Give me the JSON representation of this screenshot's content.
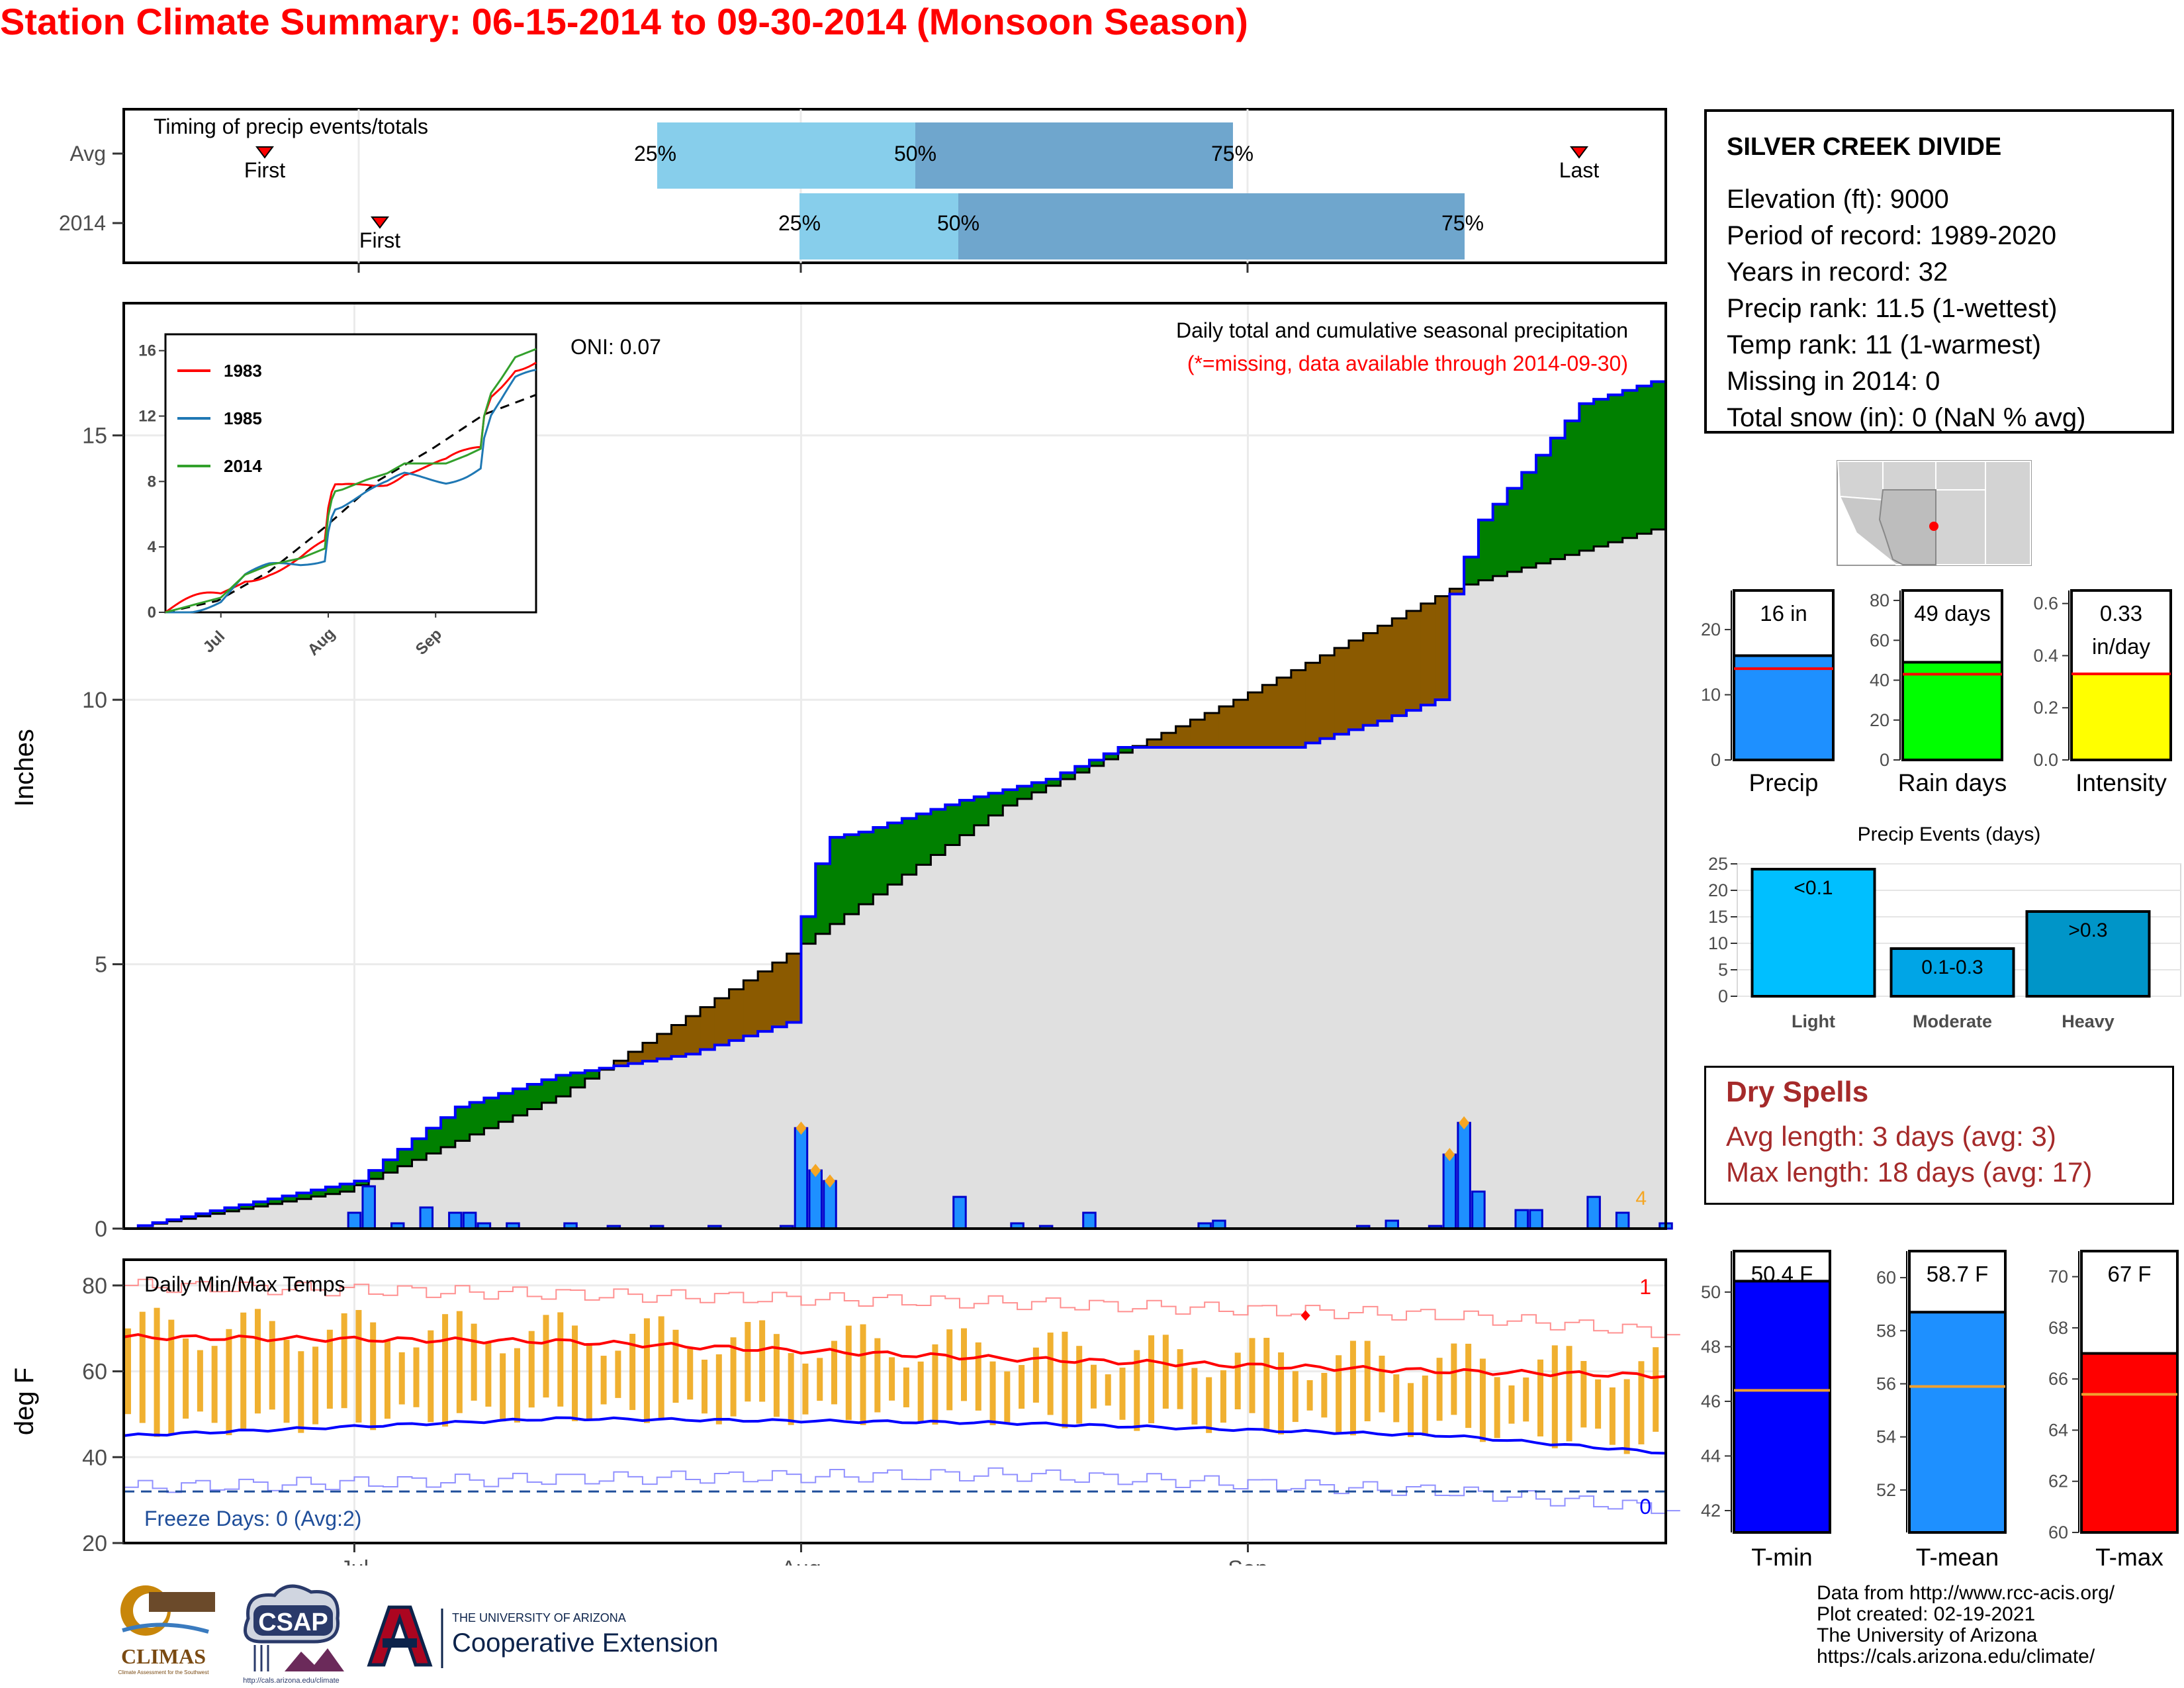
{
  "title": "Station Climate Summary: 06-15-2014 to 09-30-2014 (Monsoon Season)",
  "timing": {
    "label": "Timing of precip events/totals",
    "rows": [
      "Avg",
      "2014"
    ],
    "first_label": "First",
    "last_label": "Last",
    "pct_labels": [
      "25%",
      "50%",
      "75%"
    ],
    "colors": {
      "light": "#87ceeb",
      "dark": "#6fa6cd",
      "marker": "#ff0000"
    }
  },
  "precip": {
    "ylabel": "Inches",
    "yticks": [
      0,
      5,
      10,
      15
    ],
    "title_line1": "Daily total and cumulative seasonal precipitation",
    "title_line2": "(*=missing, data available through 2014-09-30)",
    "oni": "ONI: 0.07",
    "corner_count": "4",
    "colors": {
      "above": "#008000",
      "below": "#8b5a00",
      "normal_fill": "#e0e0e0",
      "cumulative_line": "#0000ff",
      "bar": "#1e90ff"
    }
  },
  "inset": {
    "yticks": [
      "0",
      "4",
      "8",
      "12",
      "16"
    ],
    "xticks": [
      "Jul",
      "Aug",
      "Sep"
    ],
    "legend": [
      {
        "name": "1983",
        "color": "#ff0000"
      },
      {
        "name": "1985",
        "color": "#1f78b4"
      },
      {
        "name": "2014",
        "color": "#33a02c"
      }
    ]
  },
  "temps": {
    "ylabel": "deg F",
    "yticks": [
      "20",
      "40",
      "60",
      "80"
    ],
    "title": "Daily Min/Max Temps",
    "freeze": "Freeze Days: 0 (Avg:2)",
    "record_high_count": "1",
    "record_low_count": "0",
    "colors": {
      "bar": "#f0b030",
      "max_line": "#ff0000",
      "min_line": "#0000ff",
      "freeze_line": "#1f4e9a"
    }
  },
  "xaxis": {
    "ticks": [
      "Jul",
      "Aug",
      "Sep"
    ]
  },
  "station": {
    "name": "SILVER CREEK DIVIDE",
    "lines": [
      "Elevation (ft): 9000",
      "Period of record: 1989-2020",
      "Years in record: 32",
      "Precip rank: 11.5 (1-wettest)",
      "Temp rank: 11 (1-warmest)",
      "Missing in 2014: 0",
      "Total snow (in): 0 (NaN % avg)"
    ]
  },
  "summary_bars": [
    {
      "label": "Precip",
      "value_label": "16 in",
      "yticks": [
        "0",
        "10",
        "20"
      ],
      "color": "#1e90ff"
    },
    {
      "label": "Rain days",
      "value_label": "49 days",
      "yticks": [
        "0",
        "20",
        "40",
        "60",
        "80"
      ],
      "color": "#00ff00"
    },
    {
      "label": "Intensity",
      "value_label": "0.33",
      "value_label2": "in/day",
      "yticks": [
        "0.0",
        "0.2",
        "0.4",
        "0.6"
      ],
      "color": "#ffff00"
    }
  ],
  "events": {
    "title": "Precip Events (days)",
    "yticks": [
      "0",
      "5",
      "10",
      "15",
      "20",
      "25"
    ],
    "categories": [
      "Light",
      "Moderate",
      "Heavy"
    ],
    "bar_labels": [
      "<0.1",
      "0.1-0.3",
      ">0.3"
    ],
    "colors": [
      "#00bfff",
      "#00a5e6",
      "#0095c8"
    ]
  },
  "dry_spells": {
    "title": "Dry Spells",
    "line1": "Avg length: 3 days (avg: 3)",
    "line2": "Max length: 18 days (avg: 17)",
    "color": "#a52a2a"
  },
  "temp_bars": [
    {
      "label": "T-min",
      "value_label": "50.4 F",
      "yticks": [
        "42",
        "44",
        "46",
        "48",
        "50"
      ],
      "color": "#0000ff"
    },
    {
      "label": "T-mean",
      "value_label": "58.7 F",
      "yticks": [
        "52",
        "54",
        "56",
        "58",
        "60"
      ],
      "color": "#1e90ff"
    },
    {
      "label": "T-max",
      "value_label": "67 F",
      "yticks": [
        "60",
        "62",
        "64",
        "66",
        "68",
        "70"
      ],
      "color": "#ff0000"
    }
  ],
  "footer": {
    "lines": [
      "Data from http://www.rcc-acis.org/",
      "Plot created: 02-19-2021",
      "The University of Arizona",
      "https://cals.arizona.edu/climate/"
    ],
    "climas": "CLIMAS",
    "climas_sub": "Climate Assessment for the Southwest",
    "csap": "CSAP",
    "csap_url": "http://cals.arizona.edu/climate",
    "ua_small": "THE UNIVERSITY OF ARIZONA",
    "ua_large": "Cooperative Extension"
  },
  "chart_data": [
    {
      "type": "line",
      "title": "Daily total and cumulative seasonal precipitation",
      "ylabel": "Inches",
      "xlabel": "",
      "x_range": [
        "2014-06-15",
        "2014-09-30"
      ],
      "ylim": [
        0,
        17.5
      ],
      "series": [
        {
          "name": "2014",
          "x": [
            "2014-06-15",
            "2014-07-01",
            "2014-07-08",
            "2014-07-15",
            "2014-07-24",
            "2014-07-31",
            "2014-08-01",
            "2014-08-02",
            "2014-08-03",
            "2014-08-05",
            "2014-08-12",
            "2014-08-18",
            "2014-08-23",
            "2014-09-04",
            "2014-09-10",
            "2014-09-14",
            "2014-09-15",
            "2014-09-17",
            "2014-09-20",
            "2014-09-24",
            "2014-09-30"
          ],
          "values": [
            0.0,
            0.9,
            2.3,
            2.9,
            3.3,
            3.9,
            5.9,
            6.9,
            7.4,
            7.5,
            8.1,
            8.5,
            9.1,
            9.1,
            9.6,
            10.0,
            12.0,
            13.4,
            14.3,
            15.6,
            16.1
          ]
        },
        {
          "name": "Avg",
          "x": [
            "2014-06-15",
            "2014-06-30",
            "2014-07-15",
            "2014-07-31",
            "2014-08-15",
            "2014-08-31",
            "2014-09-15",
            "2014-09-30"
          ],
          "values": [
            0.0,
            0.7,
            2.5,
            5.2,
            8.0,
            10.0,
            12.1,
            13.3
          ]
        }
      ],
      "daily_precip": {
        "x": [
          "2014-07-01",
          "2014-07-02",
          "2014-07-04",
          "2014-07-06",
          "2014-07-08",
          "2014-07-09",
          "2014-07-10",
          "2014-07-12",
          "2014-07-16",
          "2014-07-19",
          "2014-07-22",
          "2014-07-26",
          "2014-07-31",
          "2014-08-01",
          "2014-08-02",
          "2014-08-03",
          "2014-08-12",
          "2014-08-16",
          "2014-08-18",
          "2014-08-21",
          "2014-08-29",
          "2014-08-30",
          "2014-09-09",
          "2014-09-11",
          "2014-09-14",
          "2014-09-15",
          "2014-09-16",
          "2014-09-17",
          "2014-09-20",
          "2014-09-21",
          "2014-09-25",
          "2014-09-27",
          "2014-09-30"
        ],
        "values": [
          0.3,
          0.8,
          0.1,
          0.4,
          0.3,
          0.3,
          0.1,
          0.1,
          0.1,
          0.05,
          0.05,
          0.05,
          0.05,
          1.9,
          1.1,
          0.9,
          0.6,
          0.1,
          0.05,
          0.3,
          0.1,
          0.15,
          0.05,
          0.15,
          0.05,
          1.4,
          2.0,
          0.7,
          0.35,
          0.35,
          0.6,
          0.3,
          0.1
        ]
      }
    },
    {
      "type": "line",
      "title": "Daily Min/Max Temps",
      "ylabel": "deg F",
      "xlabel": "",
      "ylim": [
        20,
        90
      ],
      "series": [
        {
          "name": "Avg max",
          "x": [
            "2014-06-15",
            "2014-07-15",
            "2014-08-15",
            "2014-09-15",
            "2014-09-30"
          ],
          "values": [
            68,
            67,
            63,
            60,
            59
          ]
        },
        {
          "name": "Avg min",
          "x": [
            "2014-06-15",
            "2014-07-15",
            "2014-08-15",
            "2014-09-15",
            "2014-09-30"
          ],
          "values": [
            45,
            49,
            48,
            45,
            41
          ]
        },
        {
          "name": "Record high",
          "x": [
            "2014-06-15",
            "2014-07-15",
            "2014-08-15",
            "2014-09-15",
            "2014-09-30"
          ],
          "values": [
            80,
            78,
            76,
            73,
            69
          ]
        },
        {
          "name": "Record low",
          "x": [
            "2014-06-15",
            "2014-07-15",
            "2014-08-15",
            "2014-09-15",
            "2014-09-30"
          ],
          "values": [
            33,
            35,
            36,
            32,
            28
          ]
        }
      ],
      "freeze_threshold": 32
    },
    {
      "type": "bar",
      "title": "Precip Events (days)",
      "categories": [
        "Light",
        "Moderate",
        "Heavy"
      ],
      "values": [
        24,
        9,
        16
      ],
      "ylim": [
        0,
        25
      ]
    },
    {
      "type": "bar",
      "categories": [
        "Precip",
        "Rain days",
        "Intensity"
      ],
      "values": [
        16,
        49,
        0.33
      ],
      "averages": [
        14,
        43,
        0.33
      ]
    },
    {
      "type": "bar",
      "categories": [
        "T-min",
        "T-mean",
        "T-max"
      ],
      "values": [
        50.4,
        58.7,
        67
      ],
      "averages": [
        46.4,
        55.9,
        65.4
      ]
    }
  ]
}
